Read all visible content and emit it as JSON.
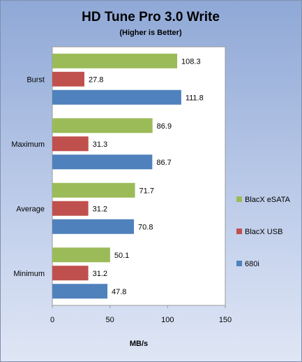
{
  "chart_data": {
    "type": "bar",
    "orientation": "horizontal",
    "title": "HD Tune Pro 3.0 Write",
    "subtitle": "(Higher is Better)",
    "xlabel": "MB/s",
    "ylabel": "",
    "xlim": [
      0,
      150
    ],
    "xticks": [
      0,
      50,
      100,
      150
    ],
    "categories": [
      "Burst",
      "Maximum",
      "Average",
      "Minimum"
    ],
    "series": [
      {
        "name": "BlacX eSATA",
        "color": "#9bbb59",
        "values": [
          108.3,
          86.9,
          71.7,
          50.1
        ]
      },
      {
        "name": "BlacX USB",
        "color": "#c0504d",
        "values": [
          27.8,
          31.3,
          31.2,
          31.2
        ]
      },
      {
        "name": "680i",
        "color": "#4f81bd",
        "values": [
          111.8,
          86.7,
          70.8,
          47.8
        ]
      }
    ],
    "grid": false,
    "legend": "right"
  }
}
